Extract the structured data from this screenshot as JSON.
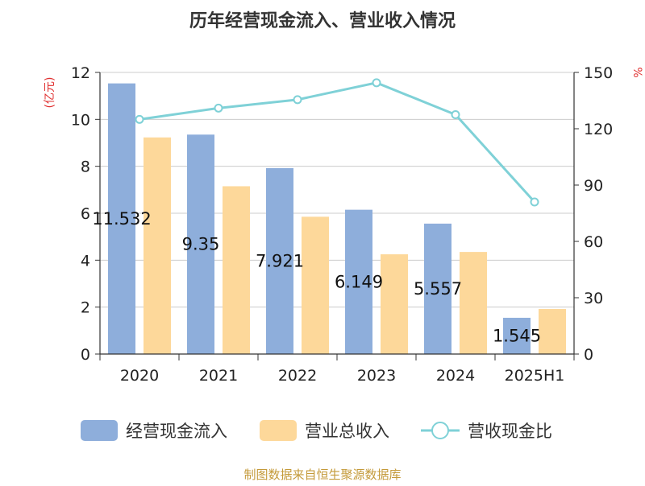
{
  "chart_data": {
    "type": "bar",
    "title": "历年经营现金流入、营业收入情况",
    "categories": [
      "2020",
      "2021",
      "2022",
      "2023",
      "2024",
      "2025H1"
    ],
    "y_left": {
      "label": "(亿元)",
      "ticks": [
        "0",
        "2",
        "4",
        "6",
        "8",
        "10",
        "12"
      ],
      "ylim": [
        0,
        12
      ]
    },
    "y_right": {
      "label": "%",
      "ticks": [
        "0",
        "30",
        "60",
        "90",
        "120",
        "150"
      ],
      "ylim": [
        0,
        150
      ]
    },
    "series": [
      {
        "name": "经营现金流入",
        "kind": "bar",
        "axis": "left",
        "color": "#8eaedb",
        "values": [
          11.532,
          9.35,
          7.921,
          6.149,
          5.557,
          1.545
        ],
        "labels": [
          "11.532",
          "9.35",
          "7.921",
          "6.149",
          "5.557",
          "1.545"
        ]
      },
      {
        "name": "营业总收入",
        "kind": "bar",
        "axis": "left",
        "color": "#fdd89a",
        "values": [
          9.23,
          7.15,
          5.85,
          4.25,
          4.35,
          1.92
        ]
      },
      {
        "name": "营收现金比",
        "kind": "line",
        "axis": "right",
        "color": "#7fd1d7",
        "values": [
          125,
          131,
          135.5,
          144.5,
          127.5,
          81
        ]
      }
    ],
    "grid": true,
    "legend_position": "bottom",
    "source": "制图数据来自恒生聚源数据库"
  }
}
